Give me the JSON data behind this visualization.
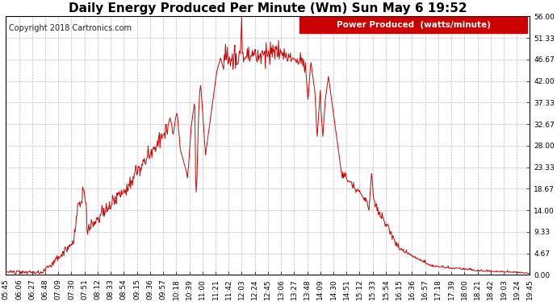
{
  "title": "Daily Energy Produced Per Minute (Wm) Sun May 6 19:52",
  "copyright": "Copyright 2018 Cartronics.com",
  "legend_label": "Power Produced  (watts/minute)",
  "legend_bg": "#cc0000",
  "line_color": "#cc0000",
  "bg_color": "#ffffff",
  "plot_bg": "#ffffff",
  "grid_color": "#bbbbbb",
  "ylim": [
    0,
    56
  ],
  "yticks": [
    0,
    4.67,
    9.33,
    14.0,
    18.67,
    23.33,
    28.0,
    32.67,
    37.33,
    42.0,
    46.67,
    51.33,
    56.0
  ],
  "xtick_labels": [
    "05:45",
    "06:06",
    "06:27",
    "06:48",
    "07:09",
    "07:30",
    "07:51",
    "08:12",
    "08:33",
    "08:54",
    "09:15",
    "09:36",
    "09:57",
    "10:18",
    "10:39",
    "11:00",
    "11:21",
    "11:42",
    "12:03",
    "12:24",
    "12:45",
    "13:06",
    "13:27",
    "13:48",
    "14:09",
    "14:30",
    "14:51",
    "15:12",
    "15:33",
    "15:54",
    "16:15",
    "16:36",
    "16:57",
    "17:18",
    "17:39",
    "18:00",
    "18:21",
    "18:42",
    "19:03",
    "19:24",
    "19:45"
  ],
  "title_fontsize": 11,
  "copyright_fontsize": 7,
  "tick_fontsize": 6.5,
  "legend_fontsize": 7.5
}
